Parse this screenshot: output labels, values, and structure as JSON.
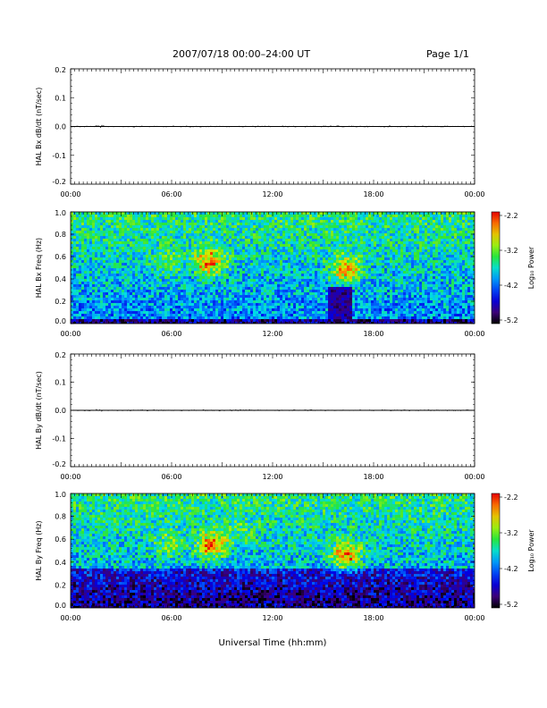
{
  "header": {
    "title": "2007/07/18   00:00–24:00 UT",
    "page": "Page 1/1"
  },
  "xaxis_common": {
    "ticks": [
      "00:00",
      "06:00",
      "12:00",
      "18:00",
      "00:00"
    ],
    "xlabel": "Universal Time (hh:mm)",
    "range_hours": [
      0,
      24
    ]
  },
  "colors": {
    "trace": "#000000",
    "background": "#ffffff"
  },
  "chart_data": [
    {
      "type": "line",
      "ylabel": "HAL Bx dB/dt (nT/sec)",
      "yticks": [
        "0.2",
        "0.1",
        "0.0",
        "-0.1",
        "-0.2"
      ],
      "ylim": [
        -0.2,
        0.2
      ],
      "xlim": [
        0,
        24
      ],
      "series": [
        {
          "x": [
            0,
            24
          ],
          "y": [
            0.0,
            0.0
          ]
        }
      ],
      "grid": false
    },
    {
      "type": "heatmap",
      "ylabel": "HAL Bx Freq (Hz)",
      "yticks": [
        "1.0",
        "0.8",
        "0.6",
        "0.4",
        "0.2",
        "0.0"
      ],
      "ylim": [
        0,
        1.0
      ],
      "xlim": [
        0,
        24
      ],
      "colorbar": {
        "label": "Log₁₀ Power",
        "ticks": [
          "-2.2",
          "-3.2",
          "-4.2",
          "-5.2"
        ],
        "range": [
          -5.2,
          -2.2
        ]
      },
      "regions": [
        {
          "t": 8.2,
          "f": 0.57,
          "power": -2.4
        },
        {
          "t": 5.7,
          "f": 0.56,
          "power": -3.2
        },
        {
          "t": 16.3,
          "f": 0.5,
          "power": -2.5
        },
        {
          "t": 15.5,
          "f": 0.12,
          "power": -4.8
        }
      ]
    },
    {
      "type": "line",
      "ylabel": "HAL By dB/dt (nT/sec)",
      "yticks": [
        "0.2",
        "0.1",
        "0.0",
        "-0.1",
        "-0.2"
      ],
      "ylim": [
        -0.2,
        0.2
      ],
      "xlim": [
        0,
        24
      ],
      "series": [
        {
          "x": [
            0,
            24
          ],
          "y": [
            0.0,
            0.0
          ]
        }
      ],
      "grid": false
    },
    {
      "type": "heatmap",
      "ylabel": "HAL By Freq (Hz)",
      "yticks": [
        "1.0",
        "0.8",
        "0.6",
        "0.4",
        "0.2",
        "0.0"
      ],
      "ylim": [
        0,
        1.0
      ],
      "xlim": [
        0,
        24
      ],
      "colorbar": {
        "label": "Log₁₀ Power",
        "ticks": [
          "-2.2",
          "-3.2",
          "-4.2",
          "-5.2"
        ],
        "range": [
          -5.2,
          -2.2
        ]
      },
      "regions": [
        {
          "t": 8.3,
          "f": 0.56,
          "power": -2.4
        },
        {
          "t": 5.8,
          "f": 0.57,
          "power": -3.2
        },
        {
          "t": 16.3,
          "f": 0.48,
          "power": -2.5
        },
        {
          "t": 10.0,
          "f": 0.68,
          "power": -3.4
        }
      ]
    }
  ]
}
